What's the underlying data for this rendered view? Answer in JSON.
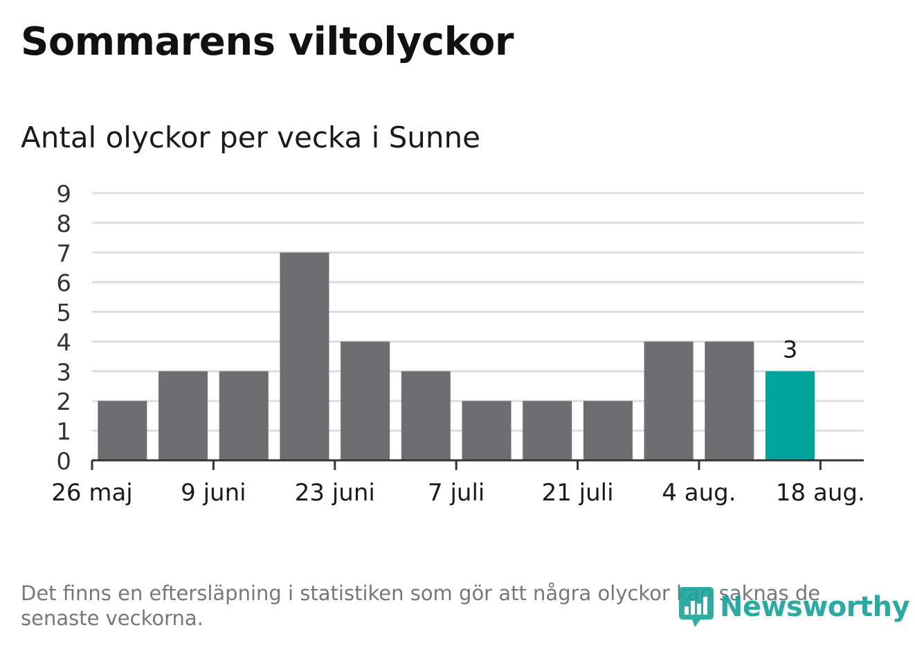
{
  "title": "Sommarens viltolyckor",
  "subtitle": "Antal olyckor per vecka i Sunne",
  "note": "Det finns en eftersläpning i statistiken som gör att några olyckor kan saknas de senaste veckorna.",
  "logo": {
    "text": "Newsworthy",
    "icon": "bar-chart-bubble-icon"
  },
  "colors": {
    "bar": "#6e6d72",
    "highlight": "#00a49a",
    "grid": "#dddddd",
    "axis": "#333333",
    "logo": "#1aa39a"
  },
  "chart_data": {
    "type": "bar",
    "title": "Sommarens viltolyckor",
    "subtitle": "Antal olyckor per vecka i Sunne",
    "xlabel": "",
    "ylabel": "",
    "x": [
      "2024-06-02",
      "2024-06-09",
      "2024-06-16",
      "2024-06-23",
      "2024-06-30",
      "2024-07-07",
      "2024-07-14",
      "2024-07-21",
      "2024-07-28",
      "2024-08-04",
      "2024-08-11",
      "2024-08-18"
    ],
    "values": [
      2,
      3,
      3,
      7,
      4,
      3,
      2,
      2,
      2,
      4,
      4,
      3
    ],
    "highlight_index": 11,
    "data_labels": [
      {
        "index": 11,
        "text": "3"
      }
    ],
    "xticks": [
      {
        "date": "2024-05-26",
        "label": "26 maj"
      },
      {
        "date": "2024-06-09",
        "label": "9 juni"
      },
      {
        "date": "2024-06-23",
        "label": "23 juni"
      },
      {
        "date": "2024-07-07",
        "label": "7 juli"
      },
      {
        "date": "2024-07-21",
        "label": "21 juli"
      },
      {
        "date": "2024-08-04",
        "label": "4 aug."
      },
      {
        "date": "2024-08-18",
        "label": "18 aug."
      }
    ],
    "yticks": [
      "0",
      "1",
      "2",
      "3",
      "4",
      "5",
      "6",
      "7",
      "8",
      "9"
    ],
    "ylim": [
      0,
      9
    ],
    "xlim": [
      "2024-05-26",
      "2024-08-23"
    ],
    "grid": true,
    "legend": "none"
  }
}
